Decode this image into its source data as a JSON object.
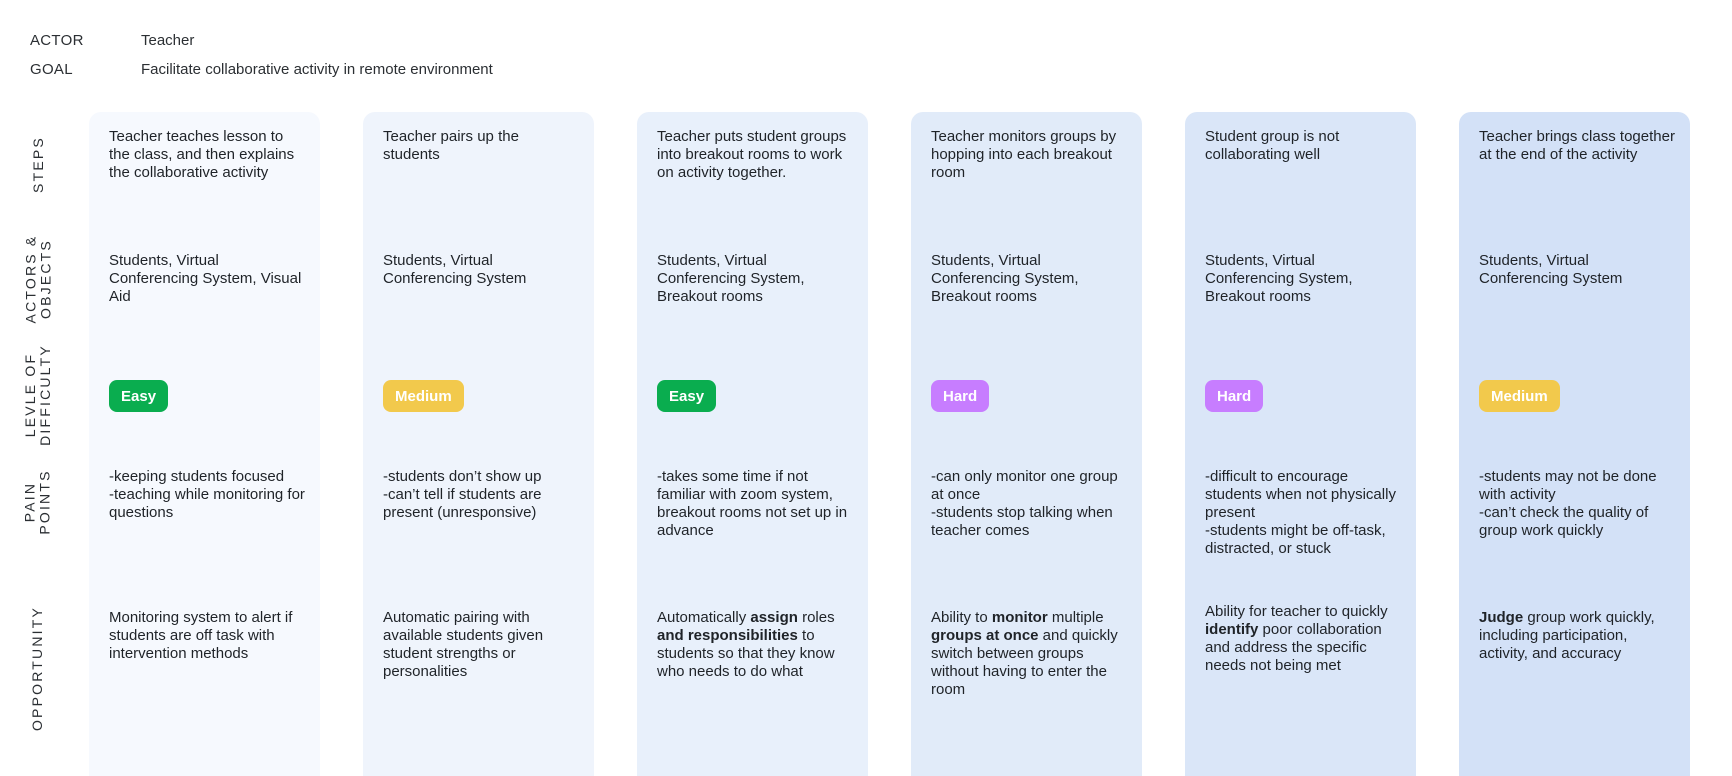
{
  "actor_label": "ACTOR",
  "actor_value": "Teacher",
  "goal_label": "GOAL",
  "goal_value": "Facilitate collaborative activity in remote environment",
  "row_labels": {
    "steps": "STEPS",
    "actors": "ACTORS &\nOBJECTS",
    "difficulty": "LEVLE OF\nDIFFICULTY",
    "pain": "PAIN\nPOINTS",
    "opportunity": "OPPORTUNITY"
  },
  "colors": {
    "easy": "#0aad4f",
    "medium": "#f2c94c",
    "hard": "#c77dff",
    "columns": [
      "#f6f9fe",
      "#eff4fc",
      "#e8f0fb",
      "#e1ebf9",
      "#dae6f8",
      "#d3e1f7"
    ]
  },
  "columns": [
    {
      "step": "Teacher teaches lesson to the class, and then explains the collaborative activity",
      "actors": "Students, Virtual Conferencing System, Visual Aid",
      "difficulty": "Easy",
      "pain": [
        "-keeping students focused",
        "-teaching while monitoring for questions"
      ],
      "opportunity": [
        {
          "t": "Monitoring system to alert if students are off task with intervention methods"
        }
      ]
    },
    {
      "step": "Teacher pairs up the students",
      "actors": "Students, Virtual Conferencing System",
      "difficulty": "Medium",
      "pain": [
        "-students don’t show up",
        "-can’t tell if students are present (unresponsive)"
      ],
      "opportunity": [
        {
          "t": "Automatic pairing with available students given student strengths or personalities"
        }
      ]
    },
    {
      "step": "Teacher puts student groups into breakout rooms to work on activity together.",
      "actors": "Students, Virtual Conferencing System, Breakout rooms",
      "difficulty": "Easy",
      "pain": [
        "-takes some time if not familiar with zoom system, breakout rooms not set up in advance"
      ],
      "opportunity": [
        {
          "t": "Automatically "
        },
        {
          "t": "assign",
          "b": true
        },
        {
          "t": " roles "
        },
        {
          "t": "and responsibilities",
          "b": true
        },
        {
          "t": " to students so that they know who needs to do what"
        }
      ]
    },
    {
      "step": "Teacher monitors groups by hopping into each breakout room",
      "actors": "Students, Virtual Conferencing System, Breakout rooms",
      "difficulty": "Hard",
      "pain": [
        "-can only monitor one group at once",
        "-students stop talking when teacher comes"
      ],
      "opportunity": [
        {
          "t": "Ability to "
        },
        {
          "t": "monitor",
          "b": true
        },
        {
          "t": " multiple "
        },
        {
          "t": "groups at once",
          "b": true
        },
        {
          "t": " and quickly switch between groups without having to enter the room"
        }
      ]
    },
    {
      "step": "Student group is not collaborating well",
      "actors": "Students, Virtual Conferencing System, Breakout rooms",
      "difficulty": "Hard",
      "pain": [
        "-difficult to encourage students when not physically present",
        "-students might be off-task, distracted, or stuck"
      ],
      "opportunity": [
        {
          "t": "Ability for teacher to quickly "
        },
        {
          "t": "identify",
          "b": true
        },
        {
          "t": " poor collaboration and address the specific needs not being met"
        }
      ]
    },
    {
      "step": "Teacher brings class together at the end of the activity",
      "actors": "Students, Virtual Conferencing System",
      "difficulty": "Medium",
      "pain": [
        "-students may not be done with activity",
        "-can’t check the quality of group work quickly"
      ],
      "opportunity": [
        {
          "t": "Judge",
          "b": true
        },
        {
          "t": " group work quickly, including participation, activity, and accuracy"
        }
      ]
    }
  ]
}
